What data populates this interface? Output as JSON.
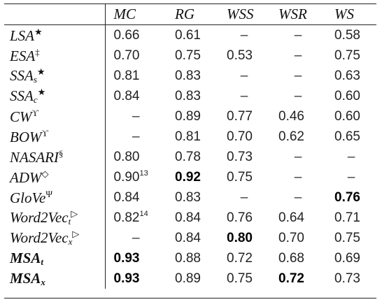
{
  "header": [
    "",
    "MC",
    "RG",
    "WSS",
    "WSR",
    "WS"
  ],
  "rows": [
    {
      "name": "LSA",
      "sub": "",
      "sup": "★",
      "bold": false,
      "cells": [
        "0.66",
        "0.61",
        "–",
        "–",
        "0.58"
      ],
      "cell_sup": [
        "",
        "",
        "",
        "",
        ""
      ],
      "cell_bold": [
        false,
        false,
        false,
        false,
        false
      ]
    },
    {
      "name": "ESA",
      "sub": "",
      "sup": "‡",
      "bold": false,
      "cells": [
        "0.70",
        "0.75",
        "0.53",
        "–",
        "0.75"
      ],
      "cell_sup": [
        "",
        "",
        "",
        "",
        ""
      ],
      "cell_bold": [
        false,
        false,
        false,
        false,
        false
      ]
    },
    {
      "name": "SSA",
      "sub": "s",
      "sup": "★",
      "bold": false,
      "cells": [
        "0.81",
        "0.83",
        "–",
        "–",
        "0.63"
      ],
      "cell_sup": [
        "",
        "",
        "",
        "",
        ""
      ],
      "cell_bold": [
        false,
        false,
        false,
        false,
        false
      ]
    },
    {
      "name": "SSA",
      "sub": "c",
      "sup": "★",
      "bold": false,
      "cells": [
        "0.84",
        "0.83",
        "–",
        "–",
        "0.60"
      ],
      "cell_sup": [
        "",
        "",
        "",
        "",
        ""
      ],
      "cell_bold": [
        false,
        false,
        false,
        false,
        false
      ]
    },
    {
      "name": "CW",
      "sub": "",
      "sup": "ϒ",
      "bold": false,
      "cells": [
        "–",
        "0.89",
        "0.77",
        "0.46",
        "0.60"
      ],
      "cell_sup": [
        "",
        "",
        "",
        "",
        ""
      ],
      "cell_bold": [
        false,
        false,
        false,
        false,
        false
      ]
    },
    {
      "name": "BOW",
      "sub": "",
      "sup": "ϒ",
      "bold": false,
      "cells": [
        "–",
        "0.81",
        "0.70",
        "0.62",
        "0.65"
      ],
      "cell_sup": [
        "",
        "",
        "",
        "",
        ""
      ],
      "cell_bold": [
        false,
        false,
        false,
        false,
        false
      ]
    },
    {
      "name": "NASARI",
      "sub": "",
      "sup": "§",
      "bold": false,
      "cells": [
        "0.80",
        "0.78",
        "0.73",
        "–",
        "–"
      ],
      "cell_sup": [
        "",
        "",
        "",
        "",
        ""
      ],
      "cell_bold": [
        false,
        false,
        false,
        false,
        false
      ]
    },
    {
      "name": "ADW",
      "sub": "",
      "sup": "◇",
      "bold": false,
      "cells": [
        "0.90",
        "0.92",
        "0.75",
        "–",
        "–"
      ],
      "cell_sup": [
        "13",
        "",
        "",
        "",
        ""
      ],
      "cell_bold": [
        false,
        true,
        false,
        false,
        false
      ]
    },
    {
      "name": "GloVe",
      "sub": "",
      "sup": "Ψ",
      "bold": false,
      "cells": [
        "0.84",
        "0.83",
        "–",
        "–",
        "0.76"
      ],
      "cell_sup": [
        "",
        "",
        "",
        "",
        ""
      ],
      "cell_bold": [
        false,
        false,
        false,
        false,
        true
      ]
    },
    {
      "name": "Word2Vec",
      "sub": "t",
      "sup": "▷",
      "bold": false,
      "cells": [
        "0.82",
        "0.84",
        "0.76",
        "0.64",
        "0.71"
      ],
      "cell_sup": [
        "14",
        "",
        "",
        "",
        ""
      ],
      "cell_bold": [
        false,
        false,
        false,
        false,
        false
      ]
    },
    {
      "name": "Word2Vec",
      "sub": "x",
      "sup": "▷",
      "bold": false,
      "cells": [
        "–",
        "0.84",
        "0.80",
        "0.70",
        "0.75"
      ],
      "cell_sup": [
        "",
        "",
        "",
        "",
        ""
      ],
      "cell_bold": [
        false,
        false,
        true,
        false,
        false
      ]
    },
    {
      "name": "MSA",
      "sub": "t",
      "sup": "",
      "bold": true,
      "cells": [
        "0.93",
        "0.88",
        "0.72",
        "0.68",
        "0.69"
      ],
      "cell_sup": [
        "",
        "",
        "",
        "",
        ""
      ],
      "cell_bold": [
        true,
        false,
        false,
        false,
        false
      ]
    },
    {
      "name": "MSA",
      "sub": "x",
      "sup": "",
      "bold": true,
      "cells": [
        "0.93",
        "0.89",
        "0.75",
        "0.72",
        "0.73"
      ],
      "cell_sup": [
        "",
        "",
        "",
        "",
        ""
      ],
      "cell_bold": [
        true,
        false,
        false,
        true,
        false
      ]
    }
  ]
}
